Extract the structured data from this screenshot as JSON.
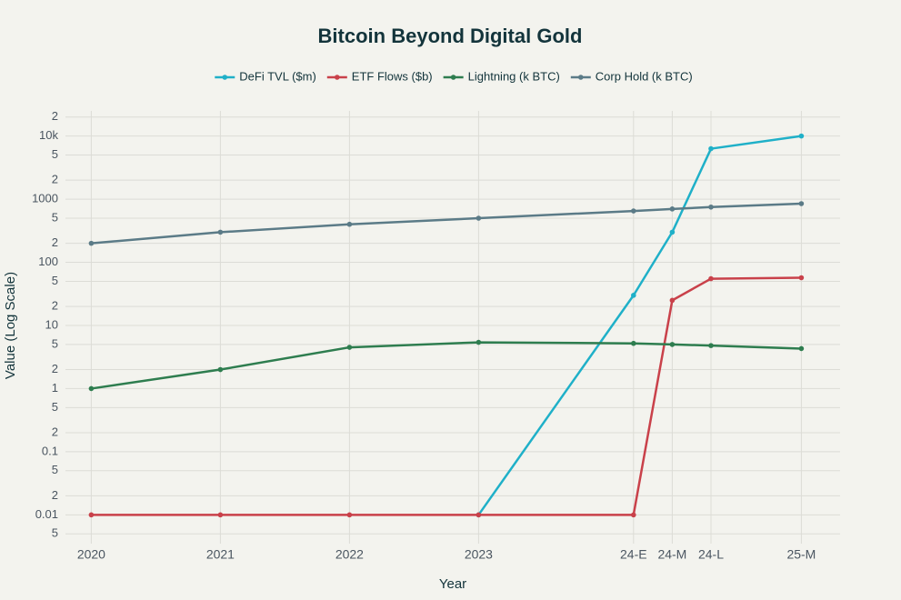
{
  "chart_data": {
    "type": "line",
    "title": "Bitcoin Beyond Digital Gold",
    "x_label": "Year",
    "y_label": "Value (Log Scale)",
    "x": [
      2020,
      2021,
      2022,
      2023,
      2024.2,
      2024.5,
      2024.8,
      2025.5
    ],
    "xlim": [
      2019.8,
      2025.8
    ],
    "xticks": [
      2020,
      2021,
      2022,
      2023,
      {
        "value": 2024.2,
        "label": "24-E"
      },
      {
        "value": 2024.5,
        "label": "24-M"
      },
      {
        "value": 2024.8,
        "label": "24-L"
      },
      {
        "value": 2025.5,
        "label": "25-M"
      }
    ],
    "y_scale": "log",
    "ylim": [
      0.0035,
      25000
    ],
    "yticks": [
      {
        "value": 0.005,
        "label": "5"
      },
      0.01,
      {
        "value": 0.02,
        "label": "2"
      },
      {
        "value": 0.05,
        "label": "5"
      },
      0.1,
      {
        "value": 0.2,
        "label": "2"
      },
      {
        "value": 0.5,
        "label": "5"
      },
      1,
      2,
      5,
      10,
      {
        "value": 20,
        "label": "2"
      },
      {
        "value": 50,
        "label": "5"
      },
      100,
      {
        "value": 200,
        "label": "2"
      },
      {
        "value": 500,
        "label": "5"
      },
      1000,
      {
        "value": 2000,
        "label": "2"
      },
      {
        "value": 5000,
        "label": "5"
      },
      {
        "value": 10000,
        "label": "10k"
      },
      {
        "value": 20000,
        "label": "2"
      }
    ],
    "grid": true,
    "legend": "top",
    "series": [
      {
        "name": "DeFi TVL ($m)",
        "color": "#1fb0c8",
        "values": [
          null,
          null,
          null,
          0.01,
          30,
          300,
          6300,
          10000
        ]
      },
      {
        "name": "ETF Flows ($b)",
        "color": "#c9414a",
        "values": [
          0.01,
          0.01,
          0.01,
          0.01,
          0.01,
          25,
          55,
          57
        ]
      },
      {
        "name": "Lightning (k BTC)",
        "color": "#2e7d4f",
        "values": [
          1,
          2,
          4.5,
          5.4,
          5.2,
          5.0,
          4.8,
          4.3
        ]
      },
      {
        "name": "Corp Hold (k BTC)",
        "color": "#5b7b87",
        "values": [
          200,
          300,
          400,
          500,
          650,
          700,
          750,
          850
        ]
      }
    ]
  }
}
